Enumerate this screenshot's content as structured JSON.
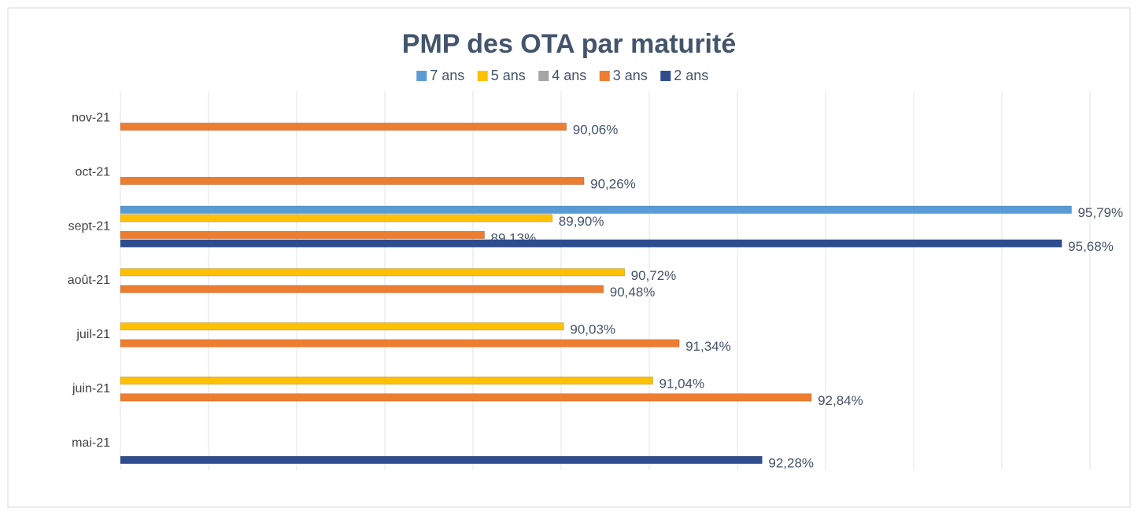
{
  "chart_data": {
    "type": "bar",
    "orientation": "horizontal",
    "title": "PMP des OTA par maturité",
    "categories": [
      "mai-21",
      "juin-21",
      "juil-21",
      "août-21",
      "sept-21",
      "oct-21",
      "nov-21"
    ],
    "series": [
      {
        "name": "7 ans",
        "color": "#5b9bd5",
        "values": [
          null,
          null,
          null,
          null,
          95.79,
          null,
          null
        ],
        "value_labels": [
          null,
          null,
          null,
          null,
          "95,79%",
          null,
          null
        ]
      },
      {
        "name": "5 ans",
        "color": "#ffc000",
        "values": [
          null,
          91.04,
          90.03,
          90.72,
          89.9,
          null,
          null
        ],
        "value_labels": [
          null,
          "91,04%",
          "90,03%",
          "90,72%",
          "89,90%",
          null,
          null
        ]
      },
      {
        "name": "4 ans",
        "color": "#a5a5a5",
        "values": [
          null,
          null,
          null,
          null,
          null,
          null,
          null
        ],
        "value_labels": [
          null,
          null,
          null,
          null,
          null,
          null,
          null
        ]
      },
      {
        "name": "3 ans",
        "color": "#ed7d31",
        "values": [
          null,
          92.84,
          91.34,
          90.48,
          89.13,
          90.26,
          90.06
        ],
        "value_labels": [
          null,
          "92,84%",
          "91,34%",
          "90,48%",
          "89,13%",
          "90,26%",
          "90,06%"
        ]
      },
      {
        "name": "2 ans",
        "color": "#2e4d8e",
        "values": [
          92.28,
          null,
          null,
          null,
          95.68,
          null,
          null
        ],
        "value_labels": [
          "92,28%",
          null,
          null,
          null,
          "95,68%",
          null,
          null
        ]
      }
    ],
    "xlim": [
      85,
      96
    ],
    "xticks": [
      85,
      86,
      87,
      88,
      89,
      90,
      91,
      92,
      93,
      94,
      95,
      96
    ],
    "grid": true,
    "legend": "top"
  }
}
